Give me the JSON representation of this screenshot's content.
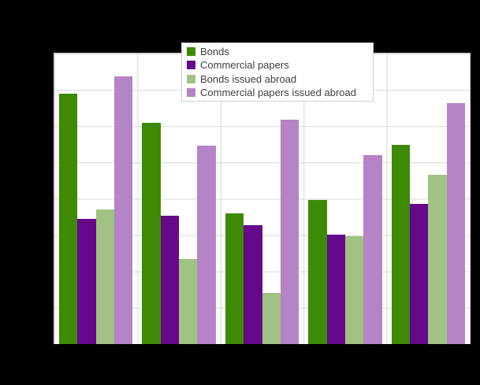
{
  "figure": {
    "background_color": "#000000",
    "plot_background_color": "#ffffff",
    "grid_color": "#d8d8d8",
    "legend_border_color": "#d0d0d0",
    "legend_text_color": "#404040"
  },
  "chart_data": {
    "type": "bar",
    "title": "",
    "xlabel": "",
    "ylabel": "",
    "categories": [
      "",
      "",
      "",
      "",
      ""
    ],
    "series": [
      {
        "name": "Bonds",
        "color": "#3e8a06",
        "values": [
          6.9,
          6.1,
          3.61,
          3.97,
          5.48
        ]
      },
      {
        "name": "Commercial papers",
        "color": "#65088a",
        "values": [
          3.44,
          3.54,
          3.28,
          3.01,
          3.86
        ]
      },
      {
        "name": "Bonds issued abroad",
        "color": "#a0c282",
        "values": [
          3.7,
          2.35,
          1.41,
          2.98,
          4.66
        ]
      },
      {
        "name": "Commercial papers issued abroad",
        "color": "#b584c7",
        "values": [
          7.38,
          5.46,
          6.17,
          5.21,
          6.63
        ]
      }
    ],
    "ylim": [
      0,
      8
    ],
    "grid": true,
    "grid_divisions": {
      "x": 5,
      "y": 8
    },
    "legend_position": "top-center",
    "axis_tick_labels_visible": false
  }
}
